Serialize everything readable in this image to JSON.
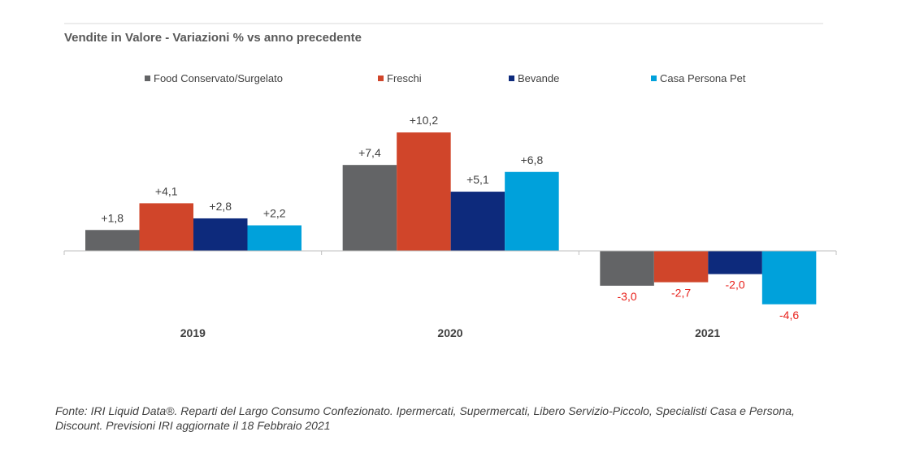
{
  "title": "Vendite in Valore - Variazioni %  vs anno precedente",
  "footnote": "Fonte: IRI Liquid Data®.  Reparti del Largo Consumo Confezionato. Ipermercati, Supermercati, Libero Servizio-Piccolo, Specialisti Casa e Persona, Discount. Previsioni IRI aggiornate il 18 Febbraio 2021",
  "colors": {
    "negative_label": "#e8221c",
    "axis": "#bfbfbf",
    "title_rule": "#d9d9d9"
  },
  "chart_data": {
    "type": "bar",
    "categories": [
      "2019",
      "2020",
      "2021"
    ],
    "series": [
      {
        "name": "Food Conservato/Surgelato",
        "color": "#636466",
        "values": [
          1.8,
          7.4,
          -3.0
        ],
        "labels": [
          "+1,8",
          "+7,4",
          "-3,0"
        ]
      },
      {
        "name": "Freschi",
        "color": "#d0452a",
        "values": [
          4.1,
          10.2,
          -2.7
        ],
        "labels": [
          "+4,1",
          "+10,2",
          "-2,7"
        ]
      },
      {
        "name": "Bevande",
        "color": "#0d2a7c",
        "values": [
          2.8,
          5.1,
          -2.0
        ],
        "labels": [
          "+2,8",
          "+5,1",
          "-2,0"
        ]
      },
      {
        "name": "Casa Persona  Pet",
        "color": "#00a1db",
        "values": [
          2.2,
          6.8,
          -4.6
        ],
        "labels": [
          "+2,2",
          "+6,8",
          "-4,6"
        ]
      }
    ],
    "legend_position": "top",
    "grid": false
  }
}
